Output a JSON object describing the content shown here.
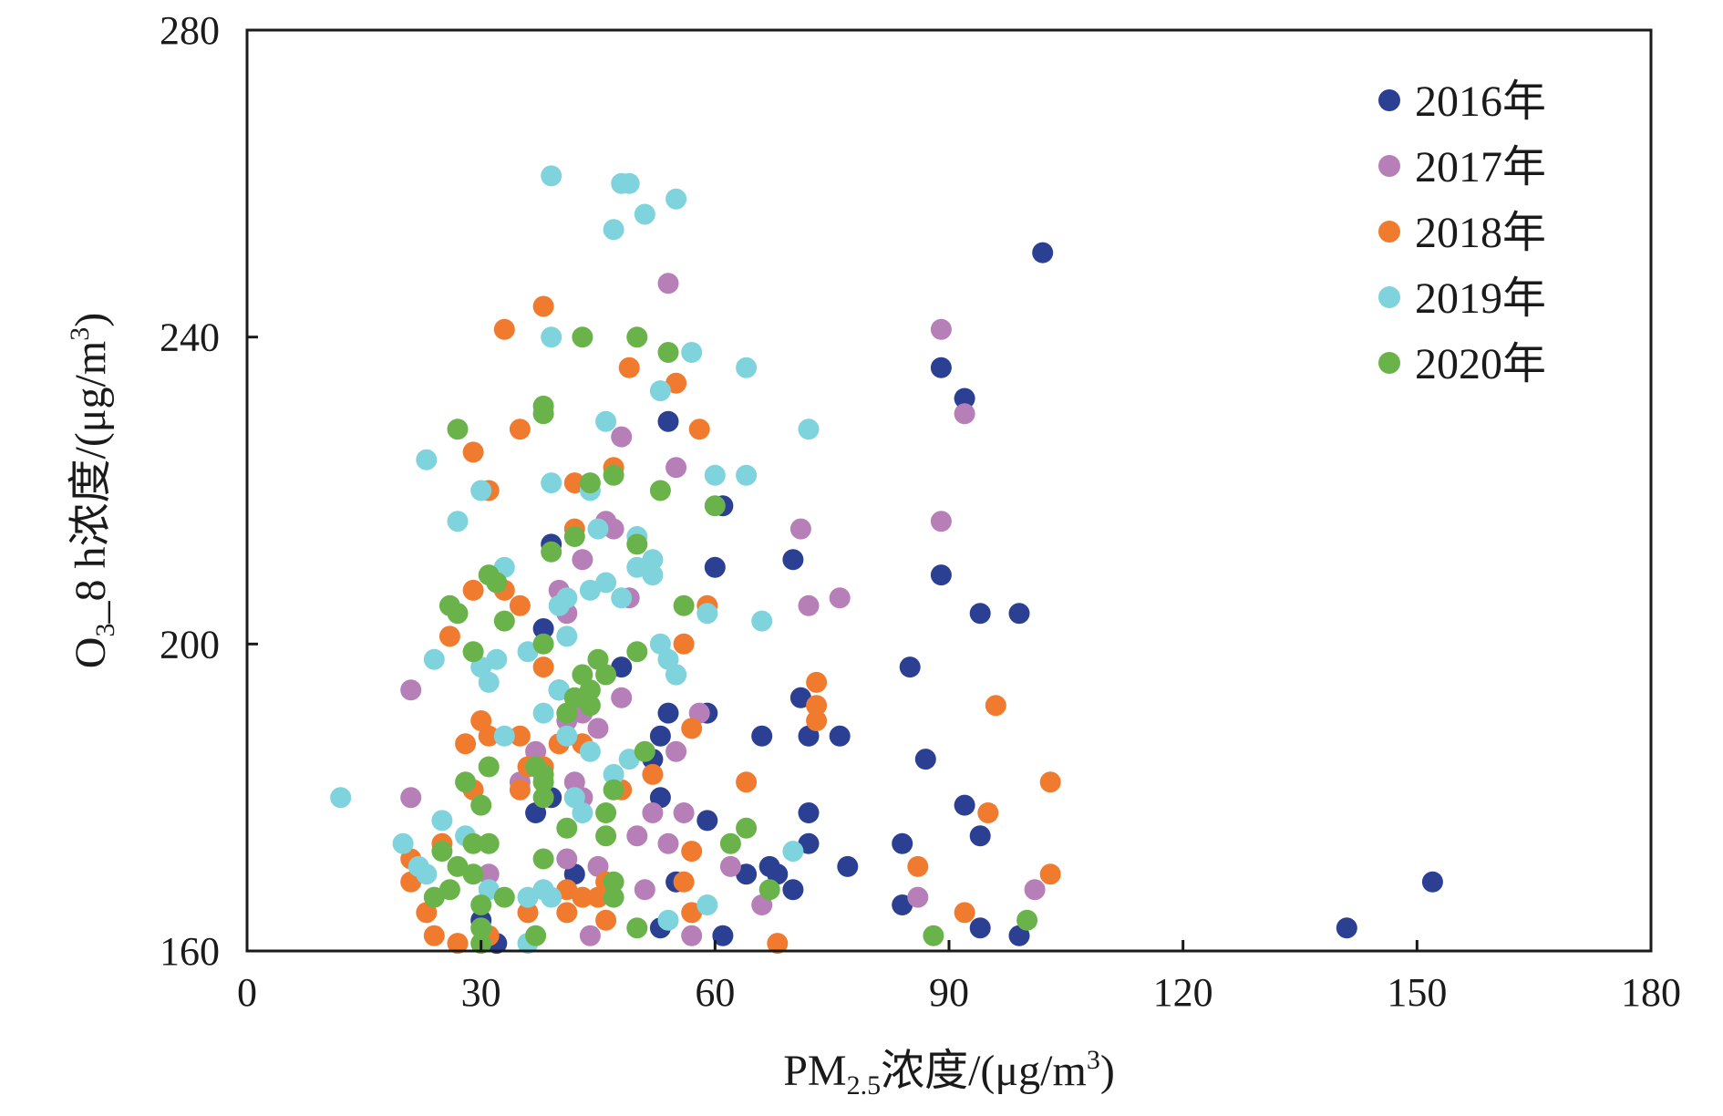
{
  "chart_data": {
    "type": "scatter",
    "xlabel": {
      "main": "PM",
      "sub": "2.5",
      "rest": "浓度/(μg/m",
      "sup": "3",
      "end": ")"
    },
    "ylabel": {
      "main": "O",
      "sub": "3",
      "rest": "_8 h浓度/(μg/m",
      "sup": "3",
      "end": ")"
    },
    "xlim": [
      0,
      180
    ],
    "ylim": [
      160,
      280
    ],
    "xticks": [
      "0",
      "30",
      "60",
      "90",
      "120",
      "150",
      "180"
    ],
    "yticks": [
      "160",
      "200",
      "240",
      "280"
    ],
    "grid": false,
    "legend_position": "top-right",
    "series": [
      {
        "name": "2016年",
        "color": "#2b3f93",
        "points": [
          [
            102,
            251
          ],
          [
            89,
            236
          ],
          [
            92,
            232
          ],
          [
            54,
            229
          ],
          [
            61,
            218
          ],
          [
            60,
            210
          ],
          [
            70,
            211
          ],
          [
            89,
            209
          ],
          [
            94,
            204
          ],
          [
            99,
            204
          ],
          [
            38,
            202
          ],
          [
            85,
            197
          ],
          [
            48,
            197
          ],
          [
            71,
            193
          ],
          [
            54,
            191
          ],
          [
            59,
            191
          ],
          [
            53,
            188
          ],
          [
            66,
            188
          ],
          [
            72,
            188
          ],
          [
            76,
            188
          ],
          [
            87,
            185
          ],
          [
            52,
            185
          ],
          [
            53,
            180
          ],
          [
            92,
            179
          ],
          [
            72,
            178
          ],
          [
            37,
            178
          ],
          [
            59,
            177
          ],
          [
            94,
            175
          ],
          [
            72,
            174
          ],
          [
            84,
            174
          ],
          [
            77,
            171
          ],
          [
            67,
            171
          ],
          [
            68,
            170
          ],
          [
            64,
            170
          ],
          [
            42,
            170
          ],
          [
            70,
            168
          ],
          [
            55,
            169
          ],
          [
            84,
            166
          ],
          [
            53,
            163
          ],
          [
            61,
            162
          ],
          [
            94,
            163
          ],
          [
            99,
            162
          ],
          [
            141,
            163
          ],
          [
            152,
            169
          ],
          [
            32,
            161
          ],
          [
            30,
            164
          ],
          [
            39,
            213
          ],
          [
            40,
            194
          ],
          [
            39,
            180
          ]
        ]
      },
      {
        "name": "2017年",
        "color": "#b77fb7",
        "points": [
          [
            54,
            247
          ],
          [
            89,
            241
          ],
          [
            92,
            230
          ],
          [
            48,
            227
          ],
          [
            55,
            223
          ],
          [
            89,
            216
          ],
          [
            71,
            215
          ],
          [
            47,
            215
          ],
          [
            43,
            211
          ],
          [
            40,
            207
          ],
          [
            76,
            206
          ],
          [
            72,
            205
          ],
          [
            49,
            206
          ],
          [
            41,
            204
          ],
          [
            21,
            194
          ],
          [
            48,
            193
          ],
          [
            43,
            191
          ],
          [
            55,
            196
          ],
          [
            58,
            191
          ],
          [
            41,
            190
          ],
          [
            45,
            189
          ],
          [
            37,
            186
          ],
          [
            55,
            186
          ],
          [
            42,
            182
          ],
          [
            21,
            180
          ],
          [
            43,
            180
          ],
          [
            52,
            178
          ],
          [
            56,
            178
          ],
          [
            50,
            175
          ],
          [
            54,
            174
          ],
          [
            41,
            172
          ],
          [
            45,
            171
          ],
          [
            62,
            171
          ],
          [
            31,
            170
          ],
          [
            51,
            168
          ],
          [
            101,
            168
          ],
          [
            86,
            167
          ],
          [
            66,
            166
          ],
          [
            44,
            162
          ],
          [
            57,
            162
          ],
          [
            46,
            216
          ],
          [
            35,
            182
          ]
        ]
      },
      {
        "name": "2018年",
        "color": "#f07b2f",
        "points": [
          [
            38,
            244
          ],
          [
            33,
            241
          ],
          [
            49,
            236
          ],
          [
            55,
            234
          ],
          [
            58,
            228
          ],
          [
            35,
            228
          ],
          [
            29,
            225
          ],
          [
            47,
            223
          ],
          [
            42,
            221
          ],
          [
            31,
            220
          ],
          [
            42,
            215
          ],
          [
            33,
            207
          ],
          [
            35,
            205
          ],
          [
            59,
            205
          ],
          [
            29,
            207
          ],
          [
            26,
            201
          ],
          [
            56,
            200
          ],
          [
            38,
            197
          ],
          [
            73,
            195
          ],
          [
            73,
            192
          ],
          [
            96,
            192
          ],
          [
            73,
            190
          ],
          [
            30,
            190
          ],
          [
            57,
            189
          ],
          [
            35,
            188
          ],
          [
            31,
            188
          ],
          [
            40,
            187
          ],
          [
            43,
            187
          ],
          [
            28,
            187
          ],
          [
            36,
            184
          ],
          [
            38,
            184
          ],
          [
            64,
            182
          ],
          [
            103,
            182
          ],
          [
            35,
            181
          ],
          [
            48,
            181
          ],
          [
            29,
            181
          ],
          [
            95,
            178
          ],
          [
            57,
            173
          ],
          [
            21,
            172
          ],
          [
            25,
            174
          ],
          [
            86,
            171
          ],
          [
            103,
            170
          ],
          [
            21,
            169
          ],
          [
            56,
            169
          ],
          [
            41,
            168
          ],
          [
            43,
            167
          ],
          [
            45,
            167
          ],
          [
            36,
            165
          ],
          [
            92,
            165
          ],
          [
            57,
            165
          ],
          [
            23,
            165
          ],
          [
            46,
            164
          ],
          [
            41,
            165
          ],
          [
            24,
            162
          ],
          [
            31,
            162
          ],
          [
            68,
            161
          ],
          [
            27,
            161
          ],
          [
            46,
            169
          ],
          [
            52,
            183
          ]
        ]
      },
      {
        "name": "2019年",
        "color": "#7fd3dc",
        "points": [
          [
            39,
            261
          ],
          [
            48,
            260
          ],
          [
            49,
            260
          ],
          [
            55,
            258
          ],
          [
            51,
            256
          ],
          [
            47,
            254
          ],
          [
            57,
            238
          ],
          [
            64,
            236
          ],
          [
            39,
            240
          ],
          [
            53,
            233
          ],
          [
            72,
            228
          ],
          [
            46,
            229
          ],
          [
            23,
            224
          ],
          [
            39,
            221
          ],
          [
            60,
            222
          ],
          [
            64,
            222
          ],
          [
            30,
            220
          ],
          [
            44,
            220
          ],
          [
            27,
            216
          ],
          [
            45,
            215
          ],
          [
            50,
            214
          ],
          [
            52,
            211
          ],
          [
            50,
            210
          ],
          [
            52,
            209
          ],
          [
            33,
            210
          ],
          [
            40,
            205
          ],
          [
            48,
            206
          ],
          [
            66,
            203
          ],
          [
            41,
            201
          ],
          [
            24,
            198
          ],
          [
            32,
            198
          ],
          [
            36,
            199
          ],
          [
            53,
            200
          ],
          [
            54,
            198
          ],
          [
            30,
            197
          ],
          [
            55,
            196
          ],
          [
            59,
            204
          ],
          [
            40,
            194
          ],
          [
            12,
            180
          ],
          [
            31,
            195
          ],
          [
            38,
            191
          ],
          [
            41,
            188
          ],
          [
            33,
            188
          ],
          [
            44,
            186
          ],
          [
            49,
            185
          ],
          [
            47,
            183
          ],
          [
            43,
            178
          ],
          [
            25,
            177
          ],
          [
            42,
            180
          ],
          [
            28,
            175
          ],
          [
            20,
            174
          ],
          [
            70,
            173
          ],
          [
            22,
            171
          ],
          [
            23,
            170
          ],
          [
            31,
            168
          ],
          [
            36,
            167
          ],
          [
            39,
            167
          ],
          [
            59,
            166
          ],
          [
            54,
            164
          ],
          [
            36,
            161
          ],
          [
            46,
            208
          ],
          [
            44,
            207
          ],
          [
            41,
            206
          ],
          [
            38,
            168
          ]
        ]
      },
      {
        "name": "2020年",
        "color": "#6ab34b",
        "points": [
          [
            43,
            240
          ],
          [
            50,
            240
          ],
          [
            54,
            238
          ],
          [
            38,
            231
          ],
          [
            38,
            230
          ],
          [
            27,
            228
          ],
          [
            47,
            222
          ],
          [
            44,
            221
          ],
          [
            53,
            220
          ],
          [
            60,
            218
          ],
          [
            42,
            214
          ],
          [
            39,
            212
          ],
          [
            31,
            209
          ],
          [
            50,
            213
          ],
          [
            32,
            208
          ],
          [
            26,
            205
          ],
          [
            27,
            204
          ],
          [
            56,
            205
          ],
          [
            33,
            203
          ],
          [
            38,
            200
          ],
          [
            29,
            199
          ],
          [
            50,
            199
          ],
          [
            45,
            198
          ],
          [
            43,
            196
          ],
          [
            46,
            196
          ],
          [
            44,
            194
          ],
          [
            42,
            193
          ],
          [
            41,
            191
          ],
          [
            44,
            192
          ],
          [
            51,
            186
          ],
          [
            31,
            184
          ],
          [
            37,
            184
          ],
          [
            38,
            183
          ],
          [
            38,
            182
          ],
          [
            47,
            181
          ],
          [
            28,
            182
          ],
          [
            30,
            179
          ],
          [
            38,
            180
          ],
          [
            46,
            178
          ],
          [
            41,
            176
          ],
          [
            64,
            176
          ],
          [
            46,
            175
          ],
          [
            62,
            174
          ],
          [
            29,
            174
          ],
          [
            31,
            174
          ],
          [
            25,
            173
          ],
          [
            38,
            172
          ],
          [
            27,
            171
          ],
          [
            24,
            167
          ],
          [
            26,
            168
          ],
          [
            29,
            170
          ],
          [
            33,
            167
          ],
          [
            30,
            166
          ],
          [
            47,
            169
          ],
          [
            47,
            167
          ],
          [
            67,
            168
          ],
          [
            100,
            164
          ],
          [
            50,
            163
          ],
          [
            30,
            161
          ],
          [
            30,
            163
          ],
          [
            88,
            162
          ],
          [
            37,
            162
          ]
        ]
      }
    ]
  }
}
